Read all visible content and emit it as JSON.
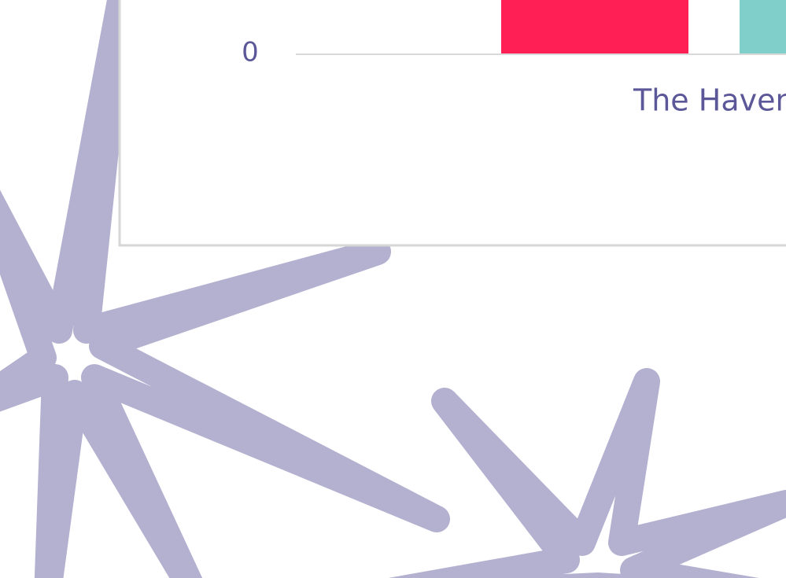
{
  "axis": {
    "tick": "0"
  },
  "category": "The Haven"
}
